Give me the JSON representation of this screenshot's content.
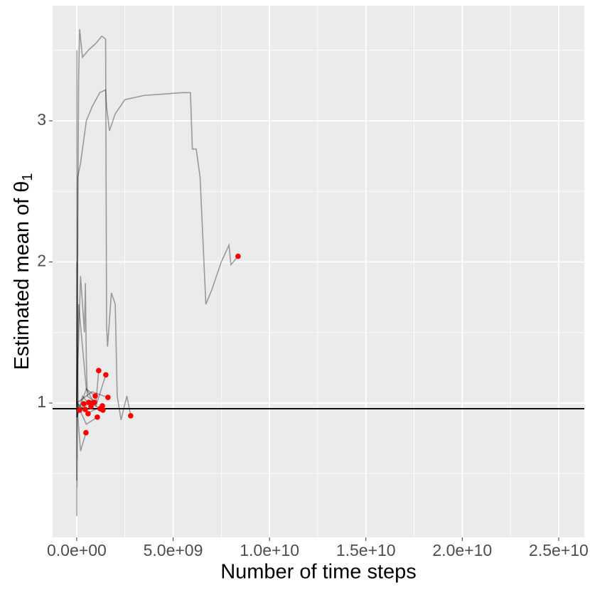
{
  "chart_data": {
    "type": "line",
    "x_label": "Number of time steps",
    "y_label": "Estimated mean of θ",
    "y_label_subscript": "1",
    "xlim": [
      -1250000000.0,
      26330000000.0
    ],
    "ylim": [
      0.048,
      3.816
    ],
    "xticks": [
      {
        "value": 0,
        "label": "0.0e+00"
      },
      {
        "value": 5000000000.0,
        "label": "5.0e+09"
      },
      {
        "value": 10000000000.0,
        "label": "1.0e+10"
      },
      {
        "value": 15000000000.0,
        "label": "1.5e+10"
      },
      {
        "value": 20000000000.0,
        "label": "2.0e+10"
      },
      {
        "value": 25000000000.0,
        "label": "2.5e+10"
      }
    ],
    "yticks": [
      1,
      2,
      3
    ],
    "xminor": [
      2500000000.0,
      7500000000.0,
      12500000000.0,
      17500000000.0,
      22500000000.0
    ],
    "yminor": [
      0.5,
      1.5,
      2.5,
      3.5
    ],
    "grid": true,
    "line_color": "#000000",
    "line_alpha": 0.35,
    "hline": 0.96,
    "point_color": "#ff0000",
    "series": [
      {
        "x": [
          0,
          50000000.0,
          200000000.0,
          500000000.0,
          800000000.0,
          1200000000.0,
          1500000000.0,
          1550000000.0,
          1700000000.0,
          2000000000.0,
          2500000000.0,
          3500000000.0,
          4500000000.0,
          5500000000.0,
          5900000000.0,
          6000000000.0,
          6200000000.0,
          6400000000.0,
          6500000000.0,
          6700000000.0,
          7000000000.0,
          7500000000.0,
          7900000000.0,
          8000000000.0,
          8370000000.0
        ],
        "values": [
          1.0,
          2.6,
          2.7,
          3.0,
          3.1,
          3.2,
          3.22,
          3.1,
          2.93,
          3.05,
          3.15,
          3.18,
          3.19,
          3.2,
          3.2,
          2.8,
          2.8,
          2.6,
          2.3,
          1.7,
          1.8,
          2.0,
          2.12,
          1.98,
          2.04
        ]
      },
      {
        "x": [
          0,
          100000000.0,
          150000000.0,
          300000000.0,
          600000000.0,
          1000000000.0,
          1300000000.0,
          1500000000.0,
          1550000000.0,
          1600000000.0,
          1800000000.0,
          2000000000.0,
          2100000000.0,
          2300000000.0,
          2600000000.0,
          2800000000.0
        ],
        "values": [
          0.9,
          3.3,
          3.65,
          3.45,
          3.5,
          3.55,
          3.6,
          3.58,
          1.55,
          1.4,
          1.78,
          1.7,
          1.05,
          0.88,
          1.05,
          0.91
        ]
      },
      {
        "x": [
          0,
          200000000.0,
          400000000.0,
          450000000.0,
          500000000.0,
          550000000.0,
          1000000000.0,
          1140000000.0
        ],
        "values": [
          1.0,
          1.9,
          1.5,
          1.85,
          1.3,
          1.05,
          1.0,
          1.23
        ]
      },
      {
        "x": [
          0,
          100000000.0,
          500000000.0,
          1000000000.0,
          1510000000.0
        ],
        "values": [
          0.95,
          1.7,
          1.1,
          0.98,
          1.2
        ]
      },
      {
        "x": [
          0,
          10000000.0,
          20000000.0,
          30000000.0,
          50000000.0,
          100000000.0
        ],
        "values": [
          0.2,
          3.5,
          0.4,
          2.3,
          0.9,
          1.0
        ]
      },
      {
        "x": [
          0,
          10000000.0,
          20000000.0,
          40000000.0,
          80000000.0
        ],
        "values": [
          0.45,
          2.0,
          0.6,
          1.4,
          0.95
        ]
      },
      {
        "x": [
          0,
          800000000.0,
          1620000000.0
        ],
        "values": [
          1.0,
          1.08,
          1.04
        ]
      },
      {
        "x": [
          0,
          500000000.0,
          960000000.0
        ],
        "values": [
          0.9,
          1.1,
          1.05
        ]
      },
      {
        "x": [
          0,
          200000000.0,
          480000000.0
        ],
        "values": [
          1.0,
          0.66,
          0.79
        ]
      },
      {
        "x": [
          0,
          500000000.0,
          1070000000.0
        ],
        "values": [
          1.0,
          0.85,
          0.9
        ]
      },
      {
        "x": [
          0,
          300000000.0,
          740000000.0
        ],
        "values": [
          0.9,
          1.05,
          0.975
        ]
      },
      {
        "x": [
          0,
          600000000.0,
          1330000000.0
        ],
        "values": [
          1.0,
          0.93,
          0.98
        ]
      },
      {
        "x": [
          0,
          700000000.0,
          1360000000.0
        ],
        "values": [
          0.95,
          1.0,
          0.95
        ]
      }
    ],
    "points": {
      "x": [
        1140000000.0,
        1510000000.0,
        1620000000.0,
        960000000.0,
        480000000.0,
        2800000000.0,
        8370000000.0,
        1070000000.0,
        370000000.0,
        630000000.0,
        810000000.0,
        920000000.0,
        740000000.0,
        1220000000.0,
        1330000000.0,
        1360000000.0,
        590000000.0,
        150000000.0,
        440000000.0
      ],
      "y": [
        1.23,
        1.2,
        1.04,
        1.05,
        0.79,
        0.91,
        2.04,
        0.9,
        0.995,
        1.005,
        1.0,
        1.005,
        0.975,
        0.96,
        0.98,
        0.95,
        0.925,
        0.95,
        0.955
      ]
    }
  }
}
